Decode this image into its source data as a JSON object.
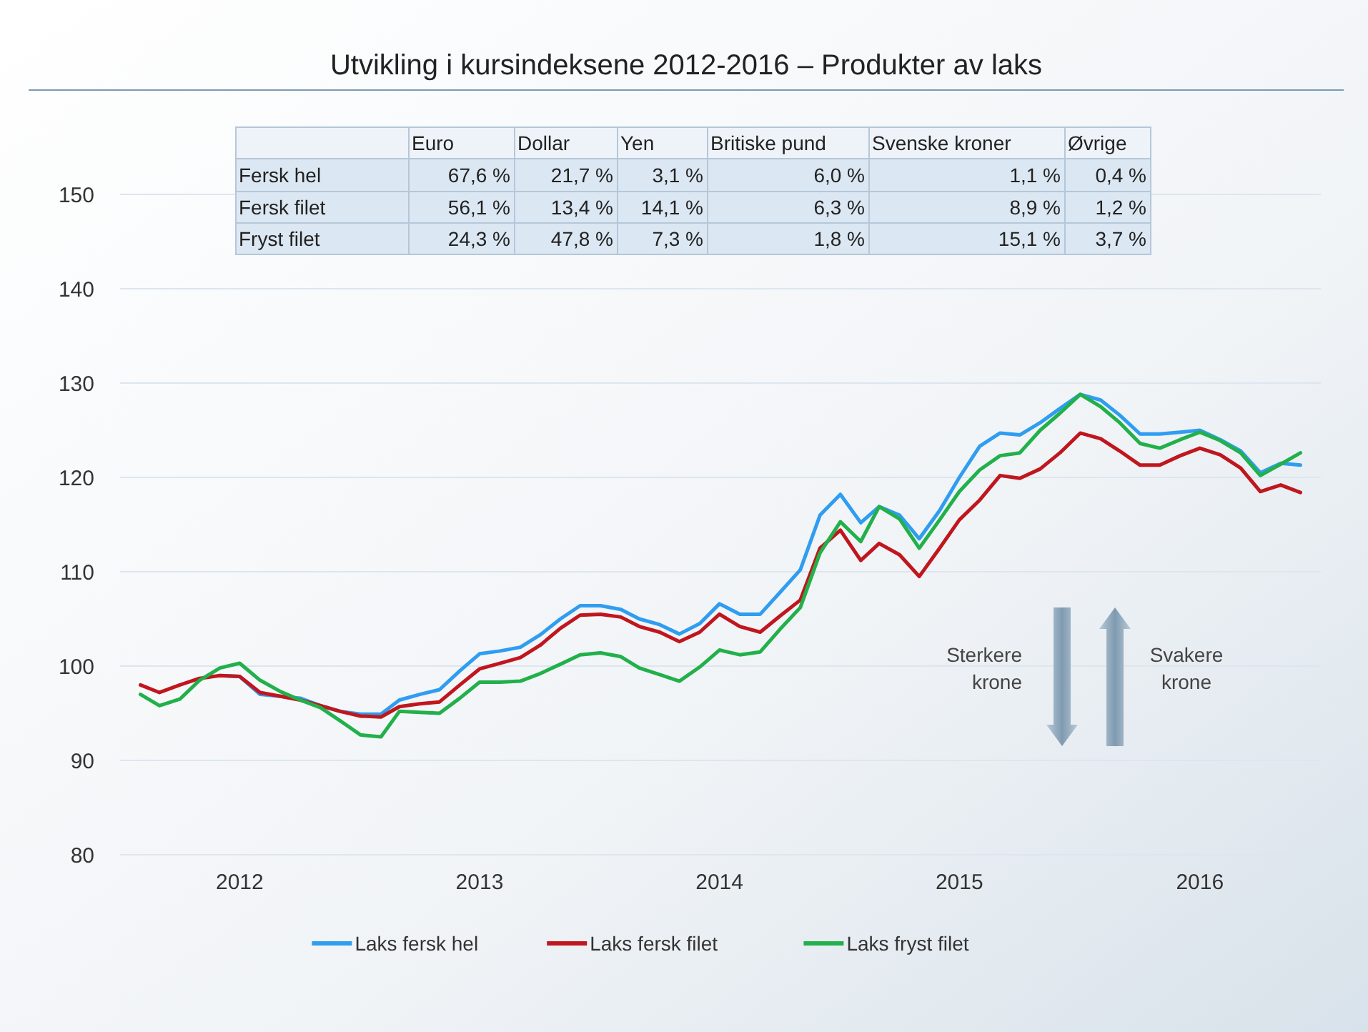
{
  "chart_data": [
    {
      "type": "line",
      "title": "Utvikling i kursindeksene 2012-2016 – Produkter av laks",
      "x": [
        "2012-02",
        "2012-03",
        "2012-04",
        "2012-05",
        "2012-06",
        "2012-07",
        "2012-08",
        "2012-09",
        "2012-10",
        "2012-11",
        "2012-12",
        "2013-01",
        "2013-02",
        "2013-03",
        "2013-04",
        "2013-05",
        "2013-06",
        "2013-07",
        "2013-08",
        "2013-09",
        "2013-10",
        "2013-11",
        "2013-12",
        "2014-01",
        "2014-02",
        "2014-03",
        "2014-04",
        "2014-05",
        "2014-06",
        "2014-07",
        "2014-08",
        "2014-09",
        "2014-10",
        "2014-11",
        "2014-12",
        "2015-01",
        "2015-02",
        "2015-03",
        "2015-04",
        "2015-05",
        "2015-06",
        "2015-07",
        "2015-08",
        "2015-09",
        "2015-10",
        "2015-11",
        "2015-12",
        "2016-01",
        "2016-02",
        "2016-03",
        "2016-04",
        "2016-05",
        "2016-06",
        "2016-07",
        "2016-08",
        "2016-09",
        "2016-10",
        "2016-11",
        "2016-12"
      ],
      "series": [
        {
          "name": "Laks fersk hel",
          "color": "#2f9df0",
          "values": [
            null,
            null,
            null,
            null,
            99.0,
            98.9,
            97.0,
            96.8,
            96.6,
            95.8,
            95.2,
            94.9,
            94.9,
            96.4,
            97.0,
            97.5,
            99.5,
            101.3,
            101.6,
            102.0,
            103.3,
            105.0,
            106.4,
            106.4,
            106.0,
            105.0,
            104.4,
            103.4,
            104.5,
            106.6,
            105.5,
            105.5,
            107.8,
            110.2,
            116.0,
            118.2,
            115.2,
            116.9,
            116.0,
            113.5,
            116.5,
            120.0,
            123.3,
            124.7,
            124.5,
            125.8,
            127.3,
            128.8,
            128.2,
            126.6,
            124.6,
            124.6,
            124.8,
            125.0,
            124.0,
            122.8,
            120.5,
            121.5,
            121.3
          ]
        },
        {
          "name": "Laks fersk filet",
          "color": "#c0161d",
          "values": [
            98.0,
            97.2,
            98.0,
            98.7,
            99.0,
            98.9,
            97.2,
            96.8,
            96.4,
            95.8,
            95.2,
            94.7,
            94.6,
            95.7,
            96.0,
            96.2,
            98.0,
            99.7,
            100.3,
            100.9,
            102.2,
            104.0,
            105.4,
            105.5,
            105.2,
            104.2,
            103.6,
            102.6,
            103.6,
            105.5,
            104.2,
            103.6,
            105.3,
            107.0,
            112.5,
            114.4,
            111.2,
            113.0,
            111.8,
            109.5,
            112.5,
            115.5,
            117.6,
            120.2,
            119.9,
            120.9,
            122.6,
            124.7,
            124.1,
            122.8,
            121.3,
            121.3,
            122.3,
            123.1,
            122.4,
            121.0,
            118.5,
            119.2,
            118.4
          ]
        },
        {
          "name": "Laks fryst filet",
          "color": "#22b04b",
          "values": [
            97.0,
            95.8,
            96.5,
            98.5,
            99.8,
            100.3,
            98.5,
            97.3,
            96.4,
            95.6,
            94.2,
            92.7,
            92.5,
            95.2,
            95.1,
            95.0,
            96.6,
            98.3,
            98.3,
            98.4,
            99.2,
            100.2,
            101.2,
            101.4,
            101.0,
            99.8,
            99.1,
            98.4,
            99.9,
            101.7,
            101.2,
            101.5,
            103.9,
            106.2,
            112.0,
            115.3,
            113.2,
            116.9,
            115.6,
            112.5,
            115.5,
            118.5,
            120.8,
            122.3,
            122.6,
            125.0,
            126.8,
            128.8,
            127.5,
            125.8,
            123.6,
            123.1,
            124.0,
            124.8,
            123.9,
            122.6,
            120.2,
            121.4,
            122.6
          ]
        }
      ],
      "xlim": [
        "2012-01-01",
        "2017-01-01"
      ],
      "xticks": [
        {
          "value": "2012-07-01",
          "label": "2012"
        },
        {
          "value": "2013-07-01",
          "label": "2013"
        },
        {
          "value": "2014-07-01",
          "label": "2014"
        },
        {
          "value": "2015-07-01",
          "label": "2015"
        },
        {
          "value": "2016-07-01",
          "label": "2016"
        }
      ],
      "ylim": [
        80,
        150
      ],
      "yticks": [
        80,
        90,
        100,
        110,
        120,
        130,
        140,
        150
      ],
      "grid": "y",
      "legend": "bottom",
      "line_style": "solid",
      "marker": "none",
      "annotations": [
        "Sterkere krone",
        "Svakere krone"
      ]
    },
    {
      "type": "other",
      "categories": [
        "Euro",
        "Dollar",
        "Yen",
        "Britiske pund",
        "Svenske kroner",
        "Øvrige"
      ],
      "y_categories": [
        "Fersk hel",
        "Fersk filet",
        "Fryst filet"
      ],
      "cell_labels": [
        [
          "67,6 %",
          "21,7 %",
          "3,1 %",
          "6,0 %",
          "1,1 %",
          "0,4 %"
        ],
        [
          "56,1 %",
          "13,4 %",
          "14,1 %",
          "6,3 %",
          "8,9 %",
          "1,2 %"
        ],
        [
          "24,3 %",
          "47,8 %",
          "7,3 %",
          "1,8 %",
          "15,1 %",
          "3,7 %"
        ]
      ]
    }
  ]
}
